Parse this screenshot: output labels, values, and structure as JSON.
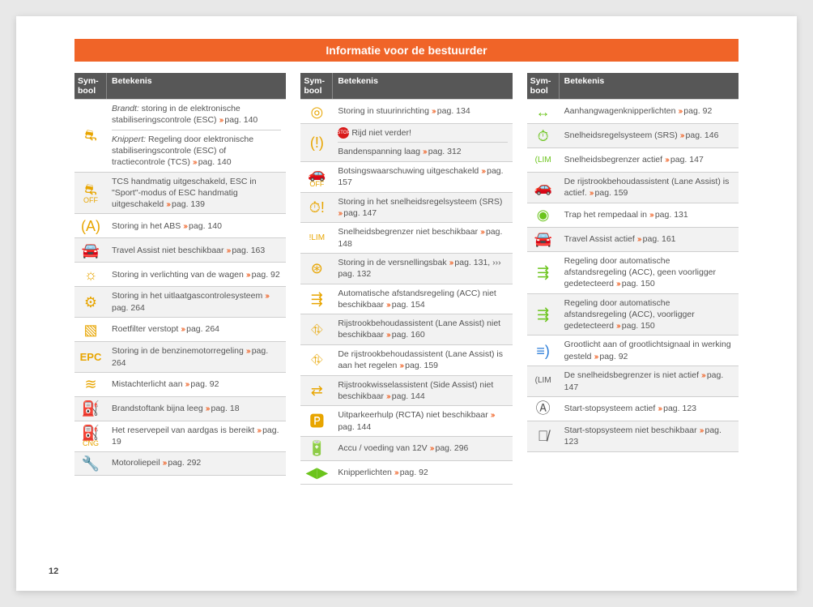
{
  "title": "Informatie voor de bestuurder",
  "pageNumber": "12",
  "headers": {
    "symbool": "Sym-\nbool",
    "betekenis": "Betekenis"
  },
  "chevron": "›››",
  "columns": [
    {
      "rows": [
        {
          "symbol": "⛐",
          "symColor": "ic-amber",
          "alt": false,
          "rowspan": 2,
          "lines": [
            {
              "pre": "Brandt:",
              "text": "storing in de elektronische stabiliseringscontrole (ESC)",
              "pag": "140",
              "preItalic": true
            },
            {
              "pre": "Knippert:",
              "text": "Regeling door elektronische stabiliseringscontrole (ESC) of tractiecontrole (TCS)",
              "pag": "140",
              "preItalic": true
            }
          ]
        },
        {
          "symbol": "⛐\nOFF",
          "symColor": "ic-amber",
          "symFont": "9px",
          "alt": true,
          "text": "TCS handmatig uitgeschakeld, ESC in \"Sport\"-modus of ESC handmatig uitgeschakeld",
          "pag": "139"
        },
        {
          "symbol": "(A)",
          "symColor": "ic-amber",
          "alt": false,
          "text": "Storing in het ABS",
          "pag": "140"
        },
        {
          "symbol": "🚘",
          "symColor": "ic-amber",
          "alt": true,
          "text": "Travel Assist niet beschikbaar",
          "pag": "163"
        },
        {
          "symbol": "☼",
          "symColor": "ic-amber",
          "alt": false,
          "text": "Storing in verlichting van de wagen",
          "pag": "92"
        },
        {
          "symbol": "⚙",
          "symColor": "ic-amber",
          "alt": true,
          "text": "Storing in het uitlaatgascontrolesysteem",
          "pag": "264"
        },
        {
          "symbol": "▧",
          "symColor": "ic-amber",
          "alt": false,
          "text": "Roetfilter verstopt",
          "pag": "264"
        },
        {
          "symbol": "EPC",
          "symColor": "ic-amber",
          "alt": true,
          "epc": true,
          "text": "Storing in de benzinemotorregeling",
          "pag": "264"
        },
        {
          "symbol": "≋",
          "symColor": "ic-amber",
          "alt": false,
          "text": "Mistachterlicht aan",
          "pag": "92"
        },
        {
          "symbol": "⛽",
          "symColor": "ic-amber",
          "alt": true,
          "text": "Brandstoftank bijna leeg",
          "pag": "18"
        },
        {
          "symbol": "⛽\nCNG",
          "symColor": "ic-amber",
          "symFont": "9px",
          "alt": false,
          "text": "Het reservepeil van aardgas is bereikt",
          "pag": "19"
        },
        {
          "symbol": "🔧",
          "symColor": "ic-amber",
          "alt": true,
          "text": "Motoroliepeil",
          "pag": "292"
        }
      ]
    },
    {
      "rows": [
        {
          "symbol": "◎",
          "symColor": "ic-amber",
          "alt": false,
          "text": "Storing in stuurinrichting",
          "pag": "134"
        },
        {
          "symbol": "(!)",
          "symColor": "ic-amber",
          "alt": true,
          "lines": [
            {
              "stop": true,
              "text": "Rijd niet verder!"
            },
            {
              "text": "Bandenspanning laag",
              "pag": "312"
            }
          ]
        },
        {
          "symbol": "🚗\nOFF",
          "symColor": "ic-amber",
          "symFont": "9px",
          "alt": false,
          "text": "Botsingswaarschuwing uitgeschakeld",
          "pag": "157"
        },
        {
          "symbol": "⏱!",
          "symColor": "ic-amber",
          "alt": true,
          "text": "Storing in het snelheidsregelsysteem (SRS)",
          "pag": "147"
        },
        {
          "symbol": "!LIM",
          "symColor": "ic-amber",
          "symFont": "10px",
          "alt": false,
          "text": "Snelheidsbegrenzer niet beschikbaar",
          "pag": "148"
        },
        {
          "symbol": "⊛",
          "symColor": "ic-amber",
          "alt": true,
          "text": "Storing in de versnellingsbak",
          "pag": "131, ››› pag. 132"
        },
        {
          "symbol": "⇶",
          "symColor": "ic-amber",
          "alt": false,
          "text": "Automatische afstandsregeling (ACC) niet beschikbaar",
          "pag": "154"
        },
        {
          "symbol": "⛗",
          "symColor": "ic-amber",
          "alt": true,
          "text": "Rijstrookbehoudassistent (Lane Assist) niet beschikbaar",
          "pag": "160"
        },
        {
          "symbol": "⛗",
          "symColor": "ic-amber",
          "alt": false,
          "text": "De rijstrookbehoudassistent (Lane Assist) is aan het regelen",
          "pag": "159"
        },
        {
          "symbol": "⇄",
          "symColor": "ic-amber",
          "alt": true,
          "text": "Rijstrookwisselassistent (Side Assist) niet beschikbaar",
          "pag": "144"
        },
        {
          "symbol": "🅿",
          "symColor": "ic-amber",
          "alt": false,
          "text": "Uitparkeerhulp (RCTA) niet beschikbaar",
          "pag": "144"
        },
        {
          "symbol": "🔋",
          "symColor": "ic-amber",
          "alt": true,
          "text": "Accu / voeding van 12V",
          "pag": "296"
        },
        {
          "symbol": "◀▶",
          "symColor": "ic-green",
          "alt": false,
          "text": "Knipperlichten",
          "pag": "92"
        }
      ]
    },
    {
      "rows": [
        {
          "symbol": "↔",
          "symColor": "ic-green",
          "alt": false,
          "text": "Aanhangwagenknipperlichten",
          "pag": "92"
        },
        {
          "symbol": "⏱",
          "symColor": "ic-green",
          "alt": true,
          "text": "Snelheidsregelsysteem (SRS)",
          "pag": "146"
        },
        {
          "symbol": "(LIM",
          "symColor": "ic-green",
          "symFont": "10px",
          "alt": false,
          "text": "Snelheidsbegrenzer actief",
          "pag": "147"
        },
        {
          "symbol": "🚗",
          "symColor": "ic-green",
          "alt": true,
          "text": "De rijstrookbehoudassistent (Lane Assist) is actief.",
          "pag": "159"
        },
        {
          "symbol": "◉",
          "symColor": "ic-green",
          "alt": false,
          "text": "Trap het rempedaal in",
          "pag": "131"
        },
        {
          "symbol": "🚘",
          "symColor": "ic-green",
          "alt": true,
          "text": "Travel Assist actief",
          "pag": "161"
        },
        {
          "symbol": "⇶",
          "symColor": "ic-green",
          "alt": false,
          "text": "Regeling door automatische afstandsregeling (ACC), geen voorligger gedetecteerd",
          "pag": "150"
        },
        {
          "symbol": "⇶",
          "symColor": "ic-green",
          "alt": true,
          "text": "Regeling door automatische afstandsregeling (ACC), voorligger gedetecteerd",
          "pag": "150"
        },
        {
          "symbol": "≡)",
          "symColor": "ic-blue",
          "alt": false,
          "text": "Grootlicht aan of grootlichtsignaal in werking gesteld",
          "pag": "92"
        },
        {
          "symbol": "(LIM",
          "symColor": "ic-gray",
          "symFont": "10px",
          "alt": true,
          "text": "De snelheidsbegrenzer is niet actief",
          "pag": "147"
        },
        {
          "symbol": "Ⓐ",
          "symColor": "ic-gray",
          "alt": false,
          "text": "Start-stopsysteem actief",
          "pag": "123"
        },
        {
          "symbol": "Ⓐ̸",
          "symColor": "ic-gray",
          "alt": true,
          "text": "Start-stopsysteem niet beschikbaar",
          "pag": "123"
        }
      ]
    }
  ]
}
